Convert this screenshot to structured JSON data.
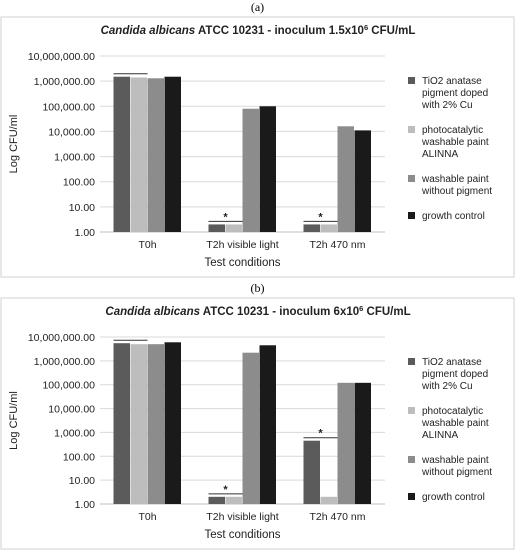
{
  "chart_data": [
    {
      "panel_label": "(a)",
      "type": "bar",
      "title_italic": "Candida albicans",
      "title_rest": " ATCC 10231 - inoculum 1.5x10",
      "title_sup": "6",
      "title_tail": " CFU/mL",
      "xlabel": "Test conditions",
      "ylabel": "Log CFU/ml",
      "yscale": "log",
      "ylim": [
        1,
        10000000
      ],
      "yticks": [
        "1.00",
        "10.00",
        "100.00",
        "1,000.00",
        "10,000.00",
        "100,000.00",
        "1,000,000.00",
        "10,000,000.00"
      ],
      "categories": [
        "T0h",
        "T2h visible light",
        "T2h 470 nm"
      ],
      "series": [
        {
          "name": "TiO2 anatase pigment doped with 2% Cu",
          "color": "#5b5b5b",
          "values": [
            1500000,
            2,
            2
          ]
        },
        {
          "name": "photocatalytic washable paint ALINNA",
          "color": "#bdbdbd",
          "values": [
            1400000,
            2,
            2
          ]
        },
        {
          "name": "washable paint without pigment",
          "color": "#8c8c8c",
          "values": [
            1300000,
            80000,
            16000
          ]
        },
        {
          "name": "growth control",
          "color": "#1a1a1a",
          "values": [
            1500000,
            100000,
            11000
          ]
        }
      ],
      "significance": [
        "",
        "*",
        "*"
      ],
      "legend_position": "right"
    },
    {
      "panel_label": "(b)",
      "type": "bar",
      "title_italic": "Candida albicans",
      "title_rest": " ATCC 10231 - inoculum 6x10",
      "title_sup": "6",
      "title_tail": " CFU/mL",
      "xlabel": "Test conditions",
      "ylabel": "Log CFU/ml",
      "yscale": "log",
      "ylim": [
        1,
        10000000
      ],
      "yticks": [
        "1.00",
        "10.00",
        "100.00",
        "1,000.00",
        "10,000.00",
        "100,000.00",
        "1,000,000.00",
        "10,000,000.00"
      ],
      "categories": [
        "T0h",
        "T2h visible light",
        "T2h 470 nm"
      ],
      "series": [
        {
          "name": "TiO2 anatase pigment doped with 2% Cu",
          "color": "#5b5b5b",
          "values": [
            5500000,
            2,
            450
          ]
        },
        {
          "name": "photocatalytic washable paint ALINNA",
          "color": "#bdbdbd",
          "values": [
            5000000,
            2,
            2
          ]
        },
        {
          "name": "washable paint without pigment",
          "color": "#8c8c8c",
          "values": [
            5000000,
            2200000,
            120000
          ]
        },
        {
          "name": "growth control",
          "color": "#1a1a1a",
          "values": [
            6000000,
            4500000,
            120000
          ]
        }
      ],
      "significance": [
        "",
        "*",
        "*"
      ],
      "legend_position": "right"
    }
  ]
}
